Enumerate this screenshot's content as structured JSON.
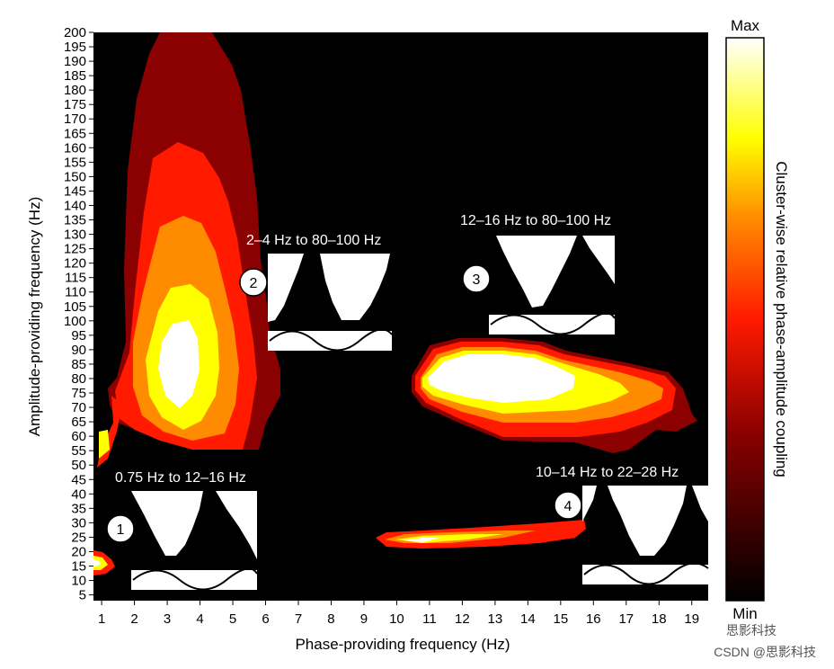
{
  "chart_data": {
    "type": "heatmap",
    "title": "",
    "xlabel": "Phase-providing frequency (Hz)",
    "ylabel": "Amplitude-providing frequency (Hz)",
    "x_ticks": [
      "1",
      "2",
      "3",
      "4",
      "5",
      "6",
      "7",
      "8",
      "9",
      "10",
      "11",
      "12",
      "13",
      "14",
      "15",
      "16",
      "17",
      "18",
      "19"
    ],
    "y_ticks": [
      "5",
      "10",
      "15",
      "20",
      "25",
      "30",
      "35",
      "40",
      "45",
      "50",
      "55",
      "60",
      "65",
      "70",
      "75",
      "80",
      "85",
      "90",
      "95",
      "100",
      "105",
      "110",
      "115",
      "120",
      "125",
      "130",
      "135",
      "140",
      "145",
      "150",
      "155",
      "160",
      "165",
      "170",
      "175",
      "180",
      "185",
      "190",
      "195",
      "200"
    ],
    "xlim": [
      0.75,
      19.5
    ],
    "ylim": [
      3,
      200
    ],
    "colorbar": {
      "label": "Cluster-wise relative phase-amplitude coupling",
      "max_label": "Max",
      "min_label": "Min",
      "colors": [
        "#000000",
        "#8b0000",
        "#ff1a00",
        "#ff8c00",
        "#ffff00",
        "#ffffff"
      ]
    },
    "annotations": [
      {
        "id": "1",
        "label": "0.75 Hz to 12–16 Hz"
      },
      {
        "id": "2",
        "label": "2–4 Hz to 80–100 Hz"
      },
      {
        "id": "3",
        "label": "12–16 Hz to 80–100 Hz"
      },
      {
        "id": "4",
        "label": "10–14 Hz to 22–28 Hz"
      }
    ]
  },
  "watermark": {
    "brand": "思影科技",
    "credit": "CSDN @思影科技"
  }
}
